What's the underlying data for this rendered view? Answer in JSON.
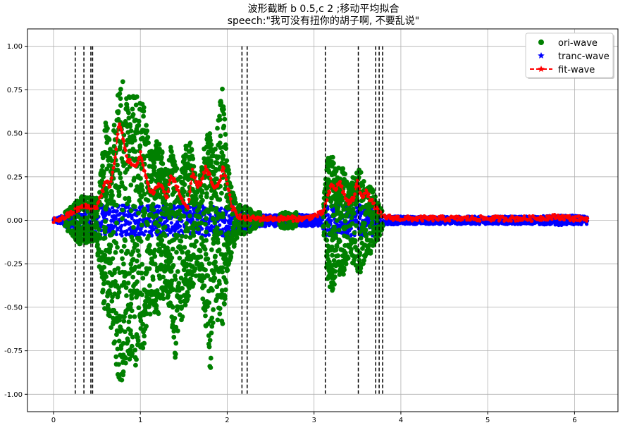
{
  "chart_data": {
    "type": "scatter",
    "title": "波形截断 b 0.5,c 2 ;移动平均拟合",
    "subtitle": "speech:\"我可没有扭你的胡子啊, 不要乱说\"",
    "xlabel": "",
    "ylabel": "",
    "xlim": [
      -0.3,
      6.5
    ],
    "ylim": [
      -1.1,
      1.1
    ],
    "x_ticks": [
      0,
      1,
      2,
      3,
      4,
      5,
      6
    ],
    "x_tick_labels": [
      "0",
      "1",
      "2",
      "3",
      "4",
      "5",
      "6"
    ],
    "y_ticks": [
      -1.0,
      -0.75,
      -0.5,
      -0.25,
      0.0,
      0.25,
      0.5,
      0.75,
      1.0
    ],
    "y_tick_labels": [
      "-1.00",
      "-0.75",
      "-0.50",
      "-0.25",
      "0.00",
      "0.25",
      "0.50",
      "0.75",
      "1.00"
    ],
    "grid": true,
    "legend_position": "top-right",
    "series": [
      {
        "name": "ori-wave",
        "color": "#008000",
        "marker": "circle"
      },
      {
        "name": "tranc-wave",
        "color": "#0000ff",
        "marker": "star"
      },
      {
        "name": "fit-wave",
        "color": "#ff0000",
        "marker": "star",
        "line": "dashed"
      }
    ],
    "cut_lines_x": [
      0.25,
      0.35,
      0.43,
      0.45,
      2.17,
      2.23,
      3.13,
      3.51,
      3.71,
      3.75,
      3.79
    ],
    "envelope": {
      "x": [
        0.0,
        0.1,
        0.2,
        0.3,
        0.4,
        0.5,
        0.55,
        0.6,
        0.65,
        0.7,
        0.75,
        0.8,
        0.85,
        0.9,
        0.95,
        1.0,
        1.05,
        1.1,
        1.15,
        1.2,
        1.25,
        1.3,
        1.35,
        1.4,
        1.45,
        1.5,
        1.55,
        1.6,
        1.65,
        1.7,
        1.75,
        1.8,
        1.85,
        1.9,
        1.95,
        2.0,
        2.05,
        2.1,
        2.15,
        2.2,
        2.25,
        2.3,
        2.5,
        2.7,
        2.9,
        3.1,
        3.15,
        3.2,
        3.25,
        3.3,
        3.35,
        3.4,
        3.45,
        3.5,
        3.55,
        3.6,
        3.65,
        3.7,
        3.75,
        3.8,
        4.0,
        4.5,
        5.0,
        5.5,
        5.8,
        6.0,
        6.1,
        6.15
      ],
      "upper": [
        0.0,
        0.03,
        0.08,
        0.14,
        0.13,
        0.13,
        0.3,
        0.6,
        0.45,
        0.55,
        0.78,
        0.8,
        0.7,
        0.73,
        0.75,
        0.68,
        0.66,
        0.42,
        0.4,
        0.48,
        0.41,
        0.3,
        0.42,
        0.35,
        0.25,
        0.38,
        0.5,
        0.4,
        0.2,
        0.3,
        0.49,
        0.5,
        0.35,
        0.6,
        0.81,
        0.35,
        0.2,
        0.1,
        0.09,
        0.09,
        0.07,
        0.05,
        0.04,
        0.05,
        0.04,
        0.04,
        0.35,
        0.4,
        0.3,
        0.33,
        0.3,
        0.2,
        0.25,
        0.3,
        0.28,
        0.18,
        0.2,
        0.15,
        0.1,
        0.03,
        0.02,
        0.02,
        0.02,
        0.02,
        0.03,
        0.03,
        0.02,
        0.02
      ],
      "lower": [
        0.0,
        -0.03,
        -0.08,
        -0.14,
        -0.13,
        -0.15,
        -0.45,
        -0.55,
        -0.6,
        -0.75,
        -0.97,
        -0.9,
        -0.8,
        -0.82,
        -0.85,
        -0.8,
        -0.7,
        -0.55,
        -0.52,
        -0.55,
        -0.48,
        -0.42,
        -0.55,
        -0.82,
        -0.6,
        -0.55,
        -0.45,
        -0.42,
        -0.3,
        -0.42,
        -0.6,
        -0.94,
        -0.5,
        -0.6,
        -0.65,
        -0.3,
        -0.2,
        -0.12,
        -0.09,
        -0.09,
        -0.07,
        -0.05,
        -0.04,
        -0.05,
        -0.04,
        -0.04,
        -0.38,
        -0.42,
        -0.35,
        -0.32,
        -0.32,
        -0.25,
        -0.28,
        -0.32,
        -0.3,
        -0.2,
        -0.2,
        -0.15,
        -0.1,
        -0.03,
        -0.02,
        -0.02,
        -0.02,
        -0.02,
        -0.03,
        -0.03,
        -0.02,
        -0.02
      ]
    },
    "fit": {
      "x": [
        0.0,
        0.1,
        0.2,
        0.3,
        0.35,
        0.45,
        0.5,
        0.55,
        0.6,
        0.65,
        0.7,
        0.75,
        0.78,
        0.82,
        0.85,
        0.9,
        0.95,
        1.0,
        1.05,
        1.1,
        1.15,
        1.2,
        1.25,
        1.3,
        1.35,
        1.4,
        1.45,
        1.5,
        1.55,
        1.6,
        1.65,
        1.7,
        1.75,
        1.8,
        1.85,
        1.9,
        1.95,
        2.0,
        2.05,
        2.1,
        2.15,
        2.2,
        2.3,
        2.5,
        2.7,
        2.9,
        3.1,
        3.15,
        3.2,
        3.25,
        3.3,
        3.35,
        3.4,
        3.45,
        3.5,
        3.55,
        3.6,
        3.65,
        3.7,
        3.75,
        3.8,
        4.0,
        4.5,
        5.0,
        5.5,
        5.8,
        6.0,
        6.15
      ],
      "y": [
        0.0,
        0.01,
        0.04,
        0.07,
        0.08,
        0.07,
        0.08,
        0.15,
        0.22,
        0.2,
        0.32,
        0.55,
        0.52,
        0.42,
        0.35,
        0.33,
        0.3,
        0.38,
        0.28,
        0.18,
        0.16,
        0.2,
        0.2,
        0.12,
        0.25,
        0.22,
        0.15,
        0.1,
        0.07,
        0.28,
        0.2,
        0.22,
        0.3,
        0.25,
        0.18,
        0.2,
        0.3,
        0.22,
        0.08,
        0.04,
        0.02,
        0.01,
        0.01,
        0.01,
        0.01,
        0.01,
        0.04,
        0.12,
        0.2,
        0.18,
        0.22,
        0.14,
        0.1,
        0.12,
        0.22,
        0.14,
        0.16,
        0.12,
        0.08,
        0.04,
        0.02,
        0.01,
        0.01,
        0.01,
        0.01,
        0.02,
        0.01,
        0.01
      ]
    }
  }
}
